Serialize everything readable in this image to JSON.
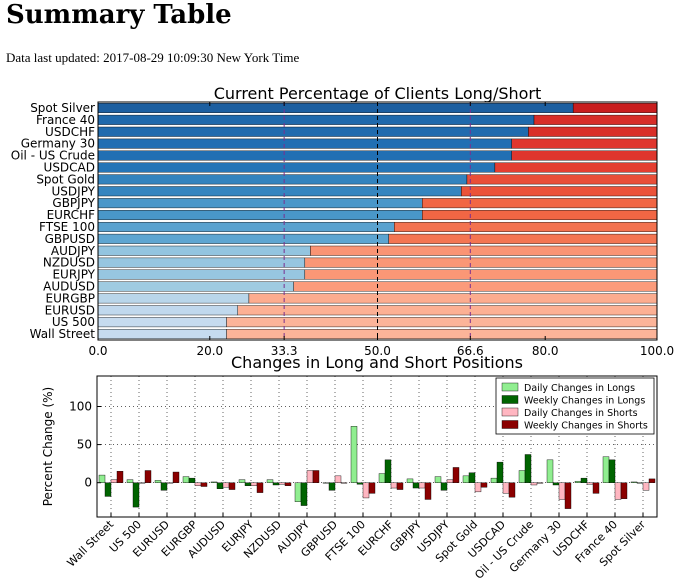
{
  "page": {
    "title": "Summary Table",
    "updated_label": "Data last updated:",
    "updated_value": "2017-08-29 10:09:30 New York Time"
  },
  "colors": {
    "long_gradient": [
      "#c6dbef",
      "#9ecae1",
      "#6baed6",
      "#4292c6",
      "#2171b5",
      "#1d5fa0"
    ],
    "short_gradient": [
      "#c81d1e",
      "#e2392f",
      "#f0613f",
      "#f67f5b",
      "#fb9a7a",
      "#fcb499"
    ],
    "reference_line": "#7b2f8f",
    "daily_long": "#90ee90",
    "weekly_long": "#006400",
    "daily_short": "#ffb6c1",
    "weekly_short": "#8b0000"
  },
  "chart_data": [
    {
      "type": "bar",
      "orientation": "horizontal",
      "stacked": true,
      "title": "Current Percentage of Clients Long/Short",
      "xlim": [
        0,
        100
      ],
      "xticks": [
        "0.0",
        "20.0",
        "33.3",
        "50.0",
        "66.6",
        "80.0",
        "100.0"
      ],
      "highlight_ticks": [
        "33.3",
        "66.6"
      ],
      "reference_lines": [
        33.3,
        66.6
      ],
      "center_line": 50,
      "categories": [
        "Spot Silver",
        "France 40",
        "USDCHF",
        "Germany 30",
        "Oil - US Crude",
        "USDCAD",
        "Spot Gold",
        "USDJPY",
        "GBPJPY",
        "EURCHF",
        "FTSE 100",
        "GBPUSD",
        "AUDJPY",
        "NZDUSD",
        "EURJPY",
        "AUDUSD",
        "EURGBP",
        "EURUSD",
        "US 500",
        "Wall Street"
      ],
      "series": [
        {
          "values": [
            85,
            78,
            77,
            74,
            74,
            71,
            66,
            65,
            58,
            58,
            53,
            52,
            38,
            37,
            37,
            35,
            27,
            25,
            23,
            23
          ]
        },
        {
          "values": [
            15,
            22,
            23,
            26,
            26,
            29,
            34,
            35,
            42,
            42,
            47,
            48,
            62,
            63,
            63,
            65,
            73,
            75,
            77,
            77
          ]
        }
      ]
    },
    {
      "type": "bar",
      "title": "Changes in Long and Short Positions",
      "ylabel": "Percent Change (%)",
      "ylim": [
        -45,
        140
      ],
      "yticks": [
        0,
        50,
        100
      ],
      "grid": true,
      "legend_position": "top-right",
      "categories": [
        "Wall Street",
        "US 500",
        "EURUSD",
        "EURGBP",
        "AUDUSD",
        "EURJPY",
        "NZDUSD",
        "AUDJPY",
        "GBPUSD",
        "FTSE 100",
        "EURCHF",
        "GBPJPY",
        "USDJPY",
        "Spot Gold",
        "USDCAD",
        "Oil - US Crude",
        "Germany 30",
        "USDCHF",
        "France 40",
        "Spot Silver"
      ],
      "series": [
        {
          "name": "Daily Changes in Longs",
          "values": [
            10,
            4,
            3,
            8,
            1,
            4,
            4,
            -25,
            0,
            74,
            12,
            5,
            8,
            9,
            6,
            16,
            30,
            2,
            34,
            1
          ]
        },
        {
          "name": "Weekly Changes in Longs",
          "values": [
            -18,
            -32,
            -10,
            6,
            -8,
            -4,
            -3,
            -30,
            -10,
            -2,
            30,
            -7,
            -10,
            13,
            27,
            37,
            -3,
            6,
            30,
            0
          ]
        },
        {
          "name": "Daily Changes in Shorts",
          "values": [
            4,
            0,
            0,
            -4,
            -6,
            -4,
            -2,
            16,
            9,
            -20,
            -7,
            -7,
            4,
            -12,
            -14,
            -3,
            -22,
            -2,
            -22,
            -10
          ]
        },
        {
          "name": "Weekly Changes in Shorts",
          "values": [
            15,
            16,
            14,
            -5,
            -9,
            -13,
            -4,
            16,
            0,
            -14,
            -9,
            -22,
            20,
            -6,
            -19,
            0,
            -34,
            -14,
            -21,
            5
          ]
        }
      ]
    }
  ]
}
